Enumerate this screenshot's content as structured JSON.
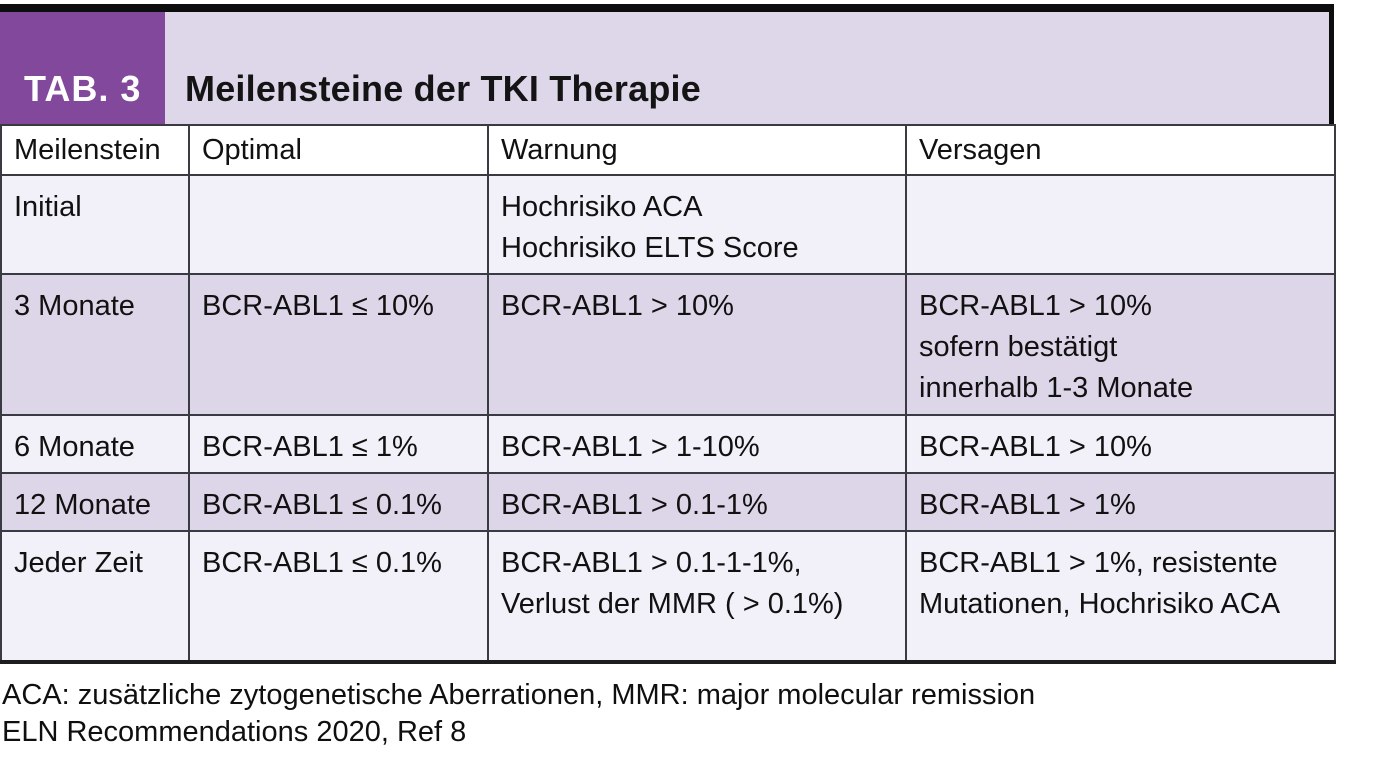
{
  "header": {
    "tab_label": "TAB. 3",
    "title": "Meilensteine der TKI Therapie"
  },
  "table": {
    "columns": [
      "Meilenstein",
      "Optimal",
      "Warnung",
      "Versagen"
    ],
    "rows": [
      {
        "milestone": "Initial",
        "optimal": "",
        "warning": "Hochrisiko ACA\nHochrisiko ELTS Score",
        "failure": ""
      },
      {
        "milestone": "3 Monate",
        "optimal": "BCR-ABL1 ≤ 10%",
        "warning": "BCR-ABL1 > 10%",
        "failure": "BCR-ABL1 > 10%\nsofern bestätigt\ninnerhalb 1-3 Monate"
      },
      {
        "milestone": "6 Monate",
        "optimal": "BCR-ABL1 ≤ 1%",
        "warning": "BCR-ABL1 > 1-10%",
        "failure": "BCR-ABL1 > 10%"
      },
      {
        "milestone": "12 Monate",
        "optimal": "BCR-ABL1 ≤ 0.1%",
        "warning": "BCR-ABL1 > 0.1-1%",
        "failure": "BCR-ABL1 > 1%"
      },
      {
        "milestone": "Jeder Zeit",
        "optimal": "BCR-ABL1 ≤ 0.1%",
        "warning": "BCR-ABL1 > 0.1-1-1%,\nVerlust der MMR ( > 0.1%)",
        "failure": "BCR-ABL1 > 1%, resistente\nMutationen, Hochrisiko ACA"
      }
    ]
  },
  "footnotes": {
    "line1": "ACA: zusätzliche zytogenetische Aberrationen, MMR: major molecular remission",
    "line2": "ELN Recommendations 2020, Ref 8"
  },
  "colors": {
    "accent_purple": "#82489b",
    "band_lavender": "#ded7ea",
    "row_light": "#f2f0f8",
    "row_dark": "#ddd5e8",
    "border": "#3a3a42"
  }
}
